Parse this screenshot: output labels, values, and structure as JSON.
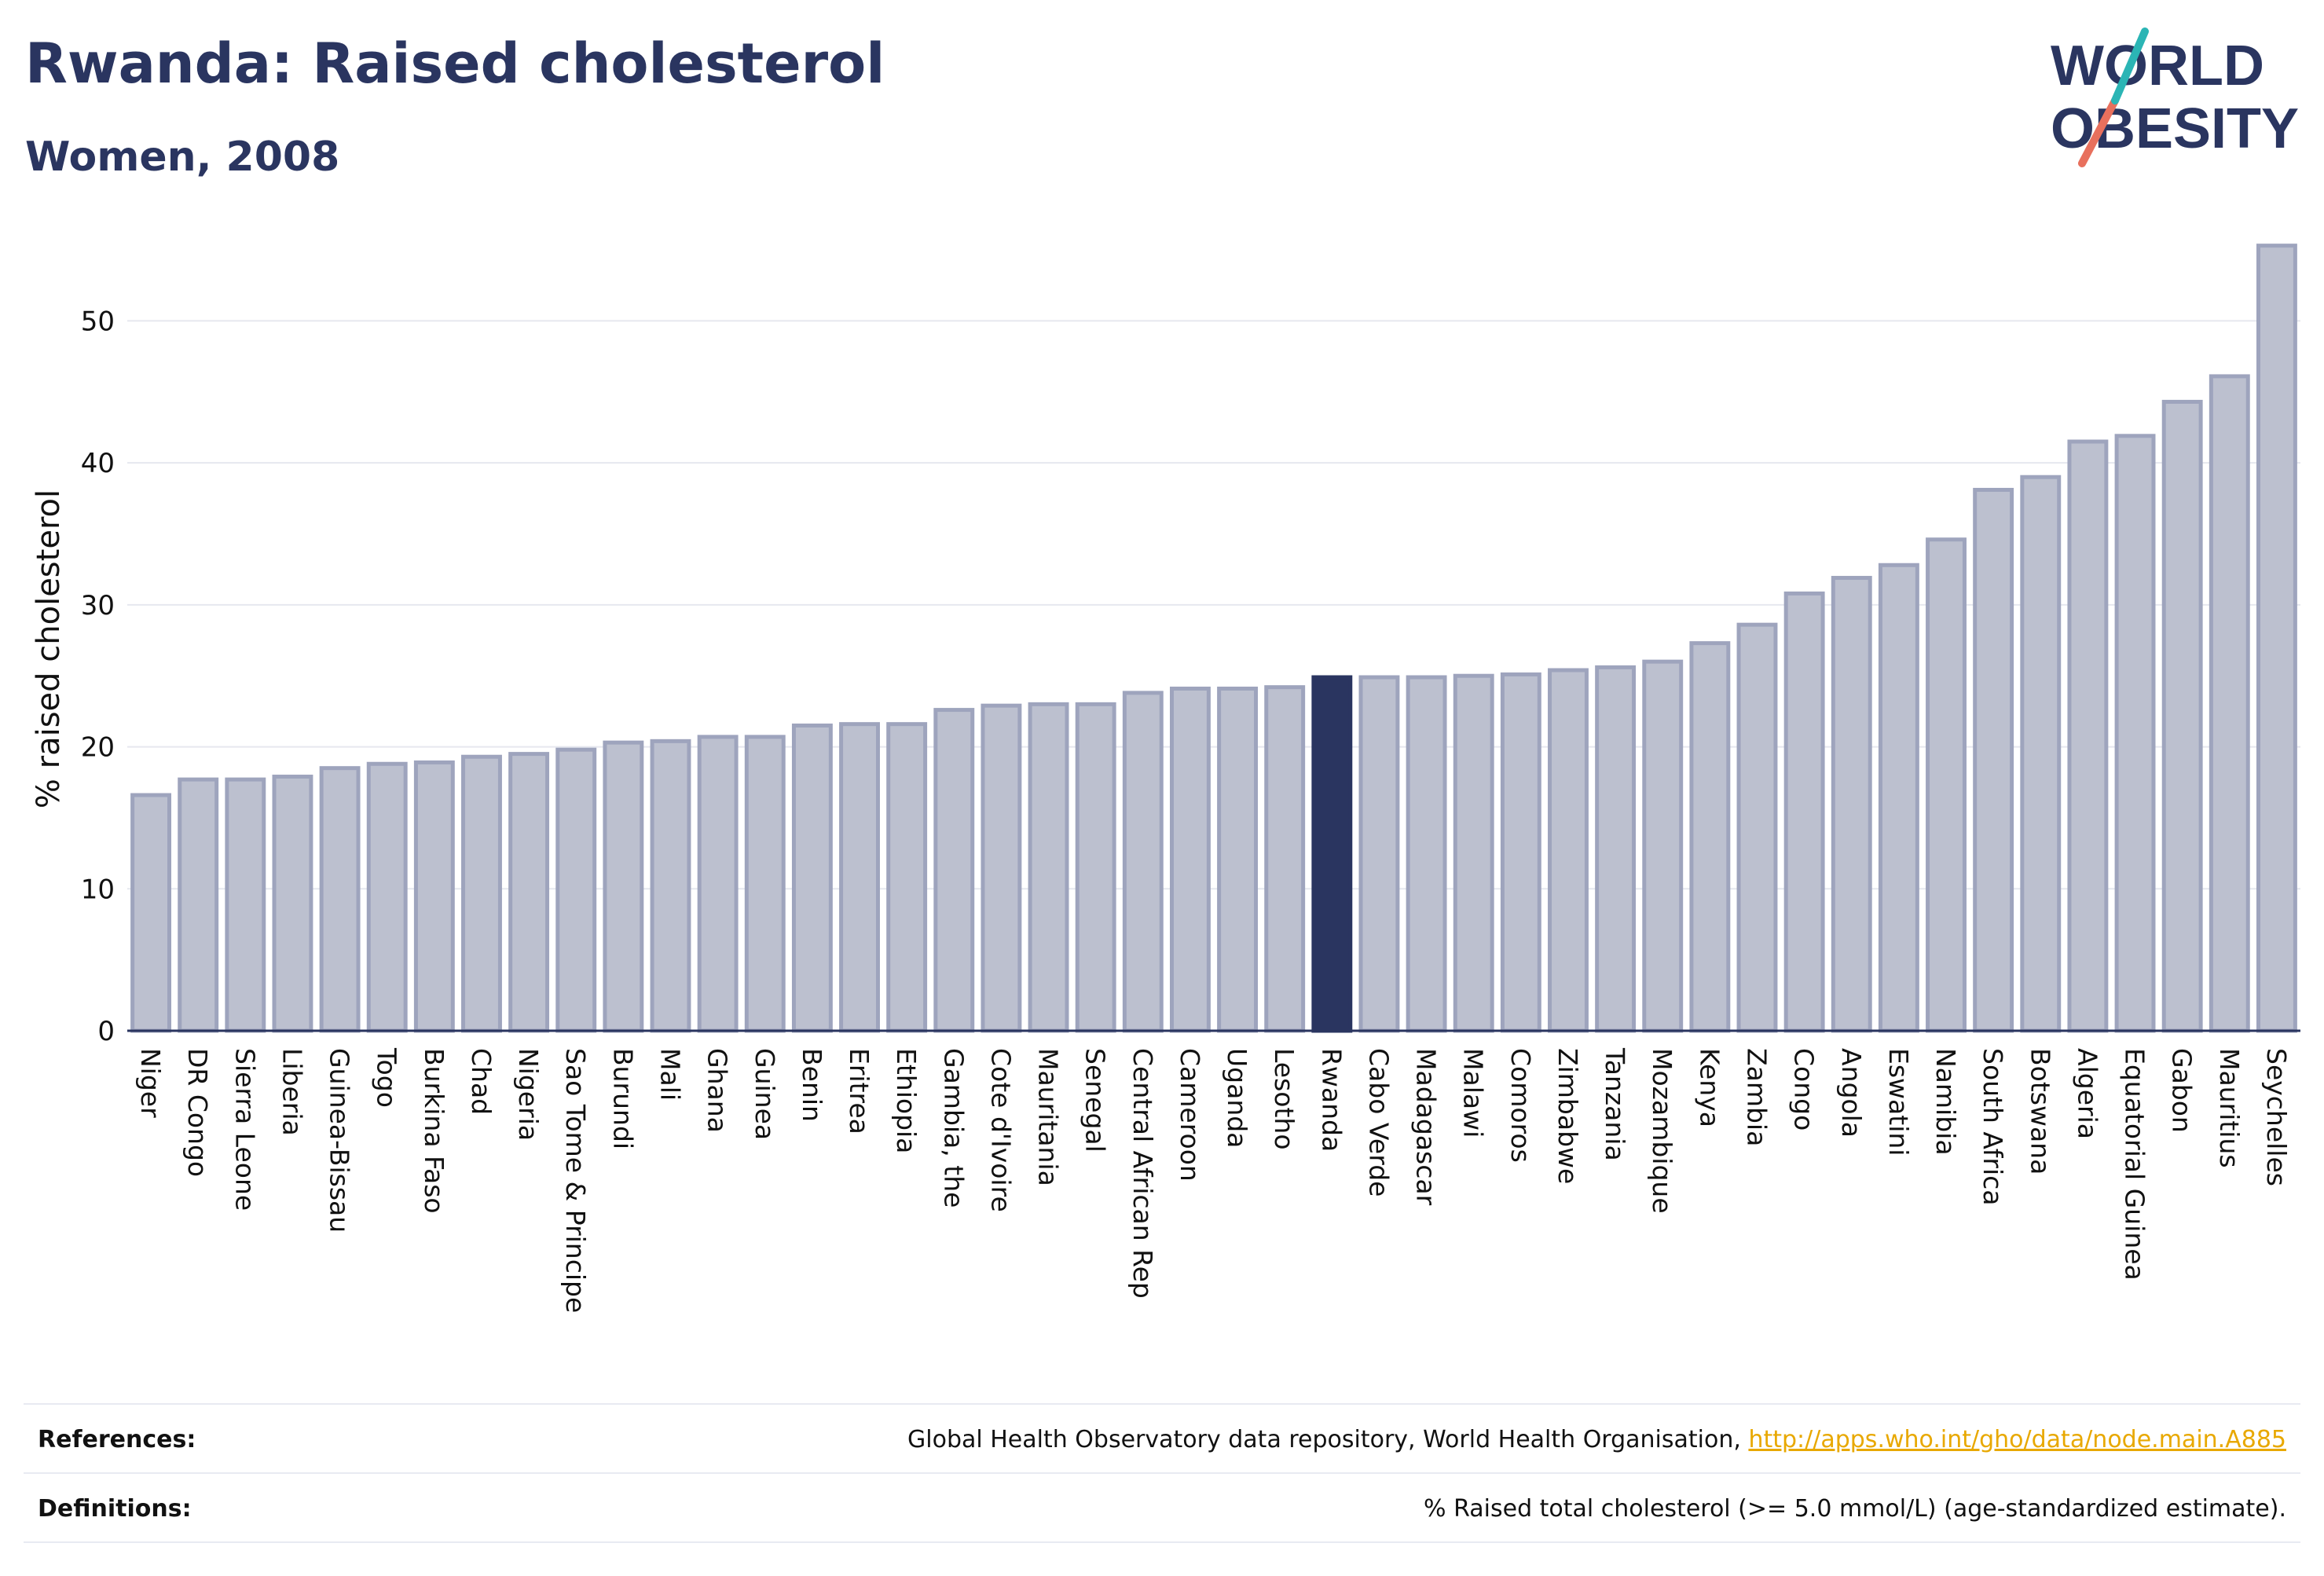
{
  "header": {
    "title": "Rwanda: Raised cholesterol",
    "subtitle": "Women, 2008"
  },
  "logo": {
    "line1": "WORLD",
    "line2": "OBESITY"
  },
  "colors": {
    "bar_fill": "#bcc0cf",
    "bar_stroke": "#9ea4bd",
    "highlight": "#2a3560",
    "text": "#2a3560",
    "logo_teal": "#2bb5b5",
    "logo_coral": "#e8705d",
    "link": "#e8a800"
  },
  "chart_data": {
    "type": "bar",
    "ylabel": "% raised cholesterol",
    "ylim": [
      0,
      56
    ],
    "yticks": [
      0,
      10,
      20,
      30,
      40,
      50
    ],
    "grid": true,
    "highlight": "Rwanda",
    "categories": [
      "Niger",
      "DR Congo",
      "Sierra Leone",
      "Liberia",
      "Guinea-Bissau",
      "Togo",
      "Burkina Faso",
      "Chad",
      "Nigeria",
      "Sao Tome & Principe",
      "Burundi",
      "Mali",
      "Ghana",
      "Guinea",
      "Benin",
      "Eritrea",
      "Ethiopia",
      "Gambia, the",
      "Cote d'Ivoire",
      "Mauritania",
      "Senegal",
      "Central African Rep",
      "Cameroon",
      "Uganda",
      "Lesotho",
      "Rwanda",
      "Cabo Verde",
      "Madagascar",
      "Malawi",
      "Comoros",
      "Zimbabwe",
      "Tanzania",
      "Mozambique",
      "Kenya",
      "Zambia",
      "Congo",
      "Angola",
      "Eswatini",
      "Namibia",
      "South Africa",
      "Botswana",
      "Algeria",
      "Equatorial Guinea",
      "Gabon",
      "Mauritius",
      "Seychelles"
    ],
    "values": [
      16.6,
      17.7,
      17.7,
      17.9,
      18.5,
      18.8,
      18.9,
      19.3,
      19.5,
      19.8,
      20.3,
      20.4,
      20.7,
      20.7,
      21.5,
      21.6,
      21.6,
      22.6,
      22.9,
      23.0,
      23.0,
      23.8,
      24.1,
      24.1,
      24.2,
      24.9,
      24.9,
      24.9,
      25.0,
      25.1,
      25.4,
      25.6,
      26.0,
      27.3,
      28.6,
      30.8,
      31.9,
      32.8,
      34.6,
      38.1,
      39.0,
      41.5,
      41.9,
      44.3,
      46.1,
      55.3
    ]
  },
  "footer": {
    "references_label": "References:",
    "references_text": "Global Health Observatory data repository, World Health Organisation, ",
    "references_link": "http://apps.who.int/gho/data/node.main.A885",
    "definitions_label": "Definitions:",
    "definitions_text": "% Raised total cholesterol (>= 5.0 mmol/L) (age-standardized estimate)."
  }
}
